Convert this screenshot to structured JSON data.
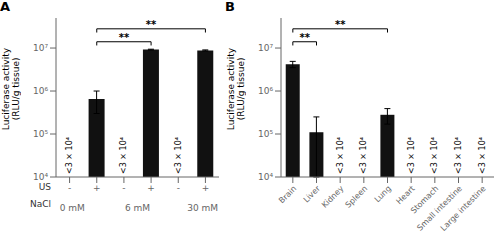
{
  "chart_data": [
    {
      "type": "bar",
      "title": "A",
      "categories": [
        "-",
        "+",
        "-",
        "+",
        "-",
        "+"
      ],
      "values": [
        null,
        650000,
        null,
        9200000,
        null,
        8800000
      ],
      "errors": [
        null,
        350000,
        null,
        200000,
        null,
        250000
      ],
      "color": "#111111",
      "log": "y",
      "ylim": [
        10000,
        50000000
      ],
      "yticks": [
        {
          "value": 10000,
          "label": "10⁴"
        },
        {
          "value": 100000,
          "label": "10⁵"
        },
        {
          "value": 1000000,
          "label": "10⁶"
        },
        {
          "value": 10000000,
          "label": "10⁷"
        }
      ],
      "ylabel": "Luciferase activity\n(RLU/g tissue)",
      "xlabel": "US",
      "groups": {
        "label": "NaCl",
        "items": [
          {
            "label": "0 mM",
            "categories": [
              0,
              1
            ]
          },
          {
            "label": "6 mM",
            "categories": [
              2,
              3
            ]
          },
          {
            "label": "30 mM",
            "categories": [
              4,
              5
            ]
          }
        ]
      },
      "annotations": [
        {
          "text": "<3 × 10⁴",
          "category": 0
        },
        {
          "text": "<3 × 10⁴",
          "category": 2
        },
        {
          "text": "<3 × 10⁴",
          "category": 4
        }
      ],
      "significance": [
        {
          "from": 1,
          "to": 3,
          "y": 14000000,
          "label": "**"
        },
        {
          "from": 1,
          "to": 5,
          "y": 28000000,
          "label": "**"
        }
      ]
    },
    {
      "type": "bar",
      "title": "B",
      "categories": [
        "Brain",
        "Liver",
        "Kidney",
        "Spleen",
        "Lung",
        "Heart",
        "Stomach",
        "Small intestine",
        "Large intestine"
      ],
      "values": [
        4200000,
        110000,
        null,
        null,
        280000,
        null,
        null,
        null,
        null
      ],
      "errors": [
        700000,
        140000,
        null,
        null,
        110000,
        null,
        null,
        null,
        null
      ],
      "color": "#111111",
      "log": "y",
      "ylim": [
        10000,
        50000000
      ],
      "yticks": [
        {
          "value": 10000,
          "label": "10⁴"
        },
        {
          "value": 100000,
          "label": "10⁵"
        },
        {
          "value": 1000000,
          "label": "10⁶"
        },
        {
          "value": 10000000,
          "label": "10⁷"
        }
      ],
      "ylabel": "Luciferase activity\n(RLU/g tissue)",
      "annotations": [
        {
          "text": "<3 × 10⁴",
          "category": 2
        },
        {
          "text": "<3 × 10⁴",
          "category": 3
        },
        {
          "text": "<3 × 10⁴",
          "category": 5
        },
        {
          "text": "<3 × 10⁴",
          "category": 6
        },
        {
          "text": "<3 × 10⁴",
          "category": 7
        },
        {
          "text": "<3 × 10⁴",
          "category": 8
        }
      ],
      "significance": [
        {
          "from": 0,
          "to": 1,
          "y": 14000000,
          "label": "**"
        },
        {
          "from": 0,
          "to": 4,
          "y": 28000000,
          "label": "**"
        }
      ]
    }
  ]
}
